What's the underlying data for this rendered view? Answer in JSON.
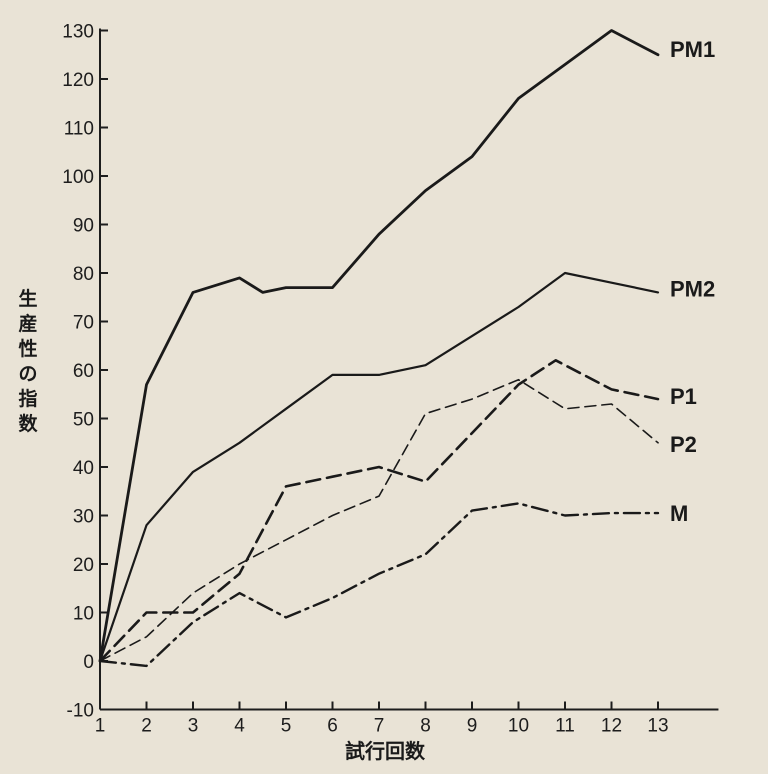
{
  "chart_data": {
    "type": "line",
    "title": "",
    "xlabel": "試行回数",
    "ylabel": "生産性の指数",
    "ylabel_lines": [
      "生",
      "産",
      "性",
      "の",
      "指",
      "数"
    ],
    "x": [
      1,
      2,
      3,
      4,
      5,
      6,
      7,
      8,
      9,
      10,
      11,
      12,
      13
    ],
    "x_ticks": [
      1,
      2,
      3,
      4,
      5,
      6,
      7,
      8,
      9,
      10,
      11,
      12,
      13
    ],
    "y_ticks": [
      -10,
      0,
      10,
      20,
      30,
      40,
      50,
      60,
      70,
      80,
      90,
      100,
      110,
      120,
      130
    ],
    "xlim": [
      1,
      14.3
    ],
    "ylim": [
      -10,
      130
    ],
    "grid": false,
    "legend": "inline labels at line ends (right)",
    "series": [
      {
        "name": "PM1",
        "style": "solid",
        "width": 2.8,
        "points": [
          [
            1,
            0
          ],
          [
            2,
            57
          ],
          [
            3,
            76
          ],
          [
            4,
            79
          ],
          [
            4.5,
            76
          ],
          [
            5,
            77
          ],
          [
            6,
            77
          ],
          [
            7,
            88
          ],
          [
            8,
            97
          ],
          [
            9,
            104
          ],
          [
            10,
            116
          ],
          [
            11,
            123
          ],
          [
            12,
            130
          ],
          [
            13,
            125
          ]
        ]
      },
      {
        "name": "PM2",
        "style": "solid",
        "width": 2.2,
        "points": [
          [
            1,
            0
          ],
          [
            2,
            28
          ],
          [
            3,
            39
          ],
          [
            4,
            45
          ],
          [
            5,
            52
          ],
          [
            6,
            59
          ],
          [
            7,
            59
          ],
          [
            8,
            61
          ],
          [
            9,
            67
          ],
          [
            10,
            73
          ],
          [
            11,
            80
          ],
          [
            12,
            78
          ],
          [
            13,
            76
          ]
        ]
      },
      {
        "name": "P1",
        "style": "dashed",
        "width": 2.6,
        "points": [
          [
            1,
            0
          ],
          [
            2,
            10
          ],
          [
            3,
            10
          ],
          [
            4,
            18
          ],
          [
            5,
            36
          ],
          [
            6,
            38
          ],
          [
            7,
            40
          ],
          [
            8,
            37
          ],
          [
            9,
            47
          ],
          [
            10,
            57
          ],
          [
            10.8,
            62
          ],
          [
            12,
            56
          ],
          [
            13,
            54
          ]
        ]
      },
      {
        "name": "P2",
        "style": "thin-dashed",
        "width": 1.6,
        "points": [
          [
            1,
            0
          ],
          [
            2,
            5
          ],
          [
            3,
            14
          ],
          [
            4,
            20
          ],
          [
            5,
            25
          ],
          [
            6,
            30
          ],
          [
            7,
            34
          ],
          [
            8,
            51
          ],
          [
            9,
            54
          ],
          [
            10,
            58
          ],
          [
            11,
            52
          ],
          [
            12,
            53
          ],
          [
            13,
            45
          ]
        ]
      },
      {
        "name": "M",
        "style": "dash-dot",
        "width": 2.4,
        "points": [
          [
            1,
            0
          ],
          [
            2,
            -1
          ],
          [
            3,
            8
          ],
          [
            4,
            14
          ],
          [
            5,
            9
          ],
          [
            6,
            13
          ],
          [
            7,
            18
          ],
          [
            8,
            22
          ],
          [
            9,
            31
          ],
          [
            10,
            32.5
          ],
          [
            11,
            30
          ],
          [
            12,
            30.5
          ],
          [
            13,
            30.5
          ]
        ]
      }
    ]
  }
}
